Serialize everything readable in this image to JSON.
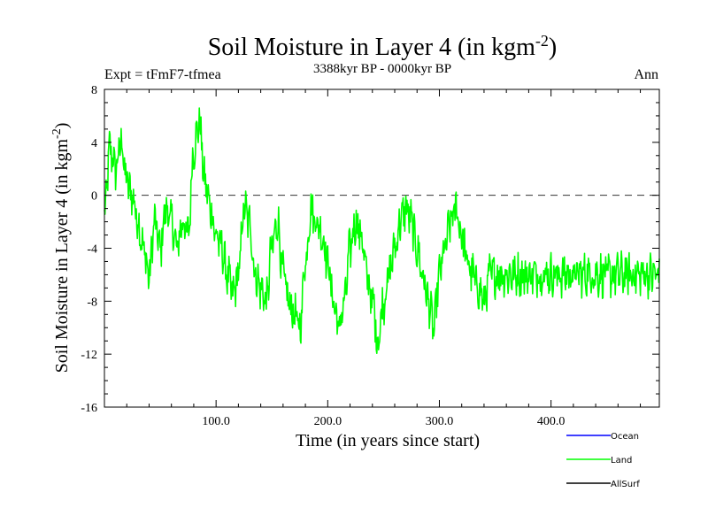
{
  "chart_data": {
    "type": "line",
    "title": {
      "text": "Soil Moisture in Layer 4 (in kgm",
      "sup": "-2",
      "close": ")"
    },
    "subtitle_left": "Expt = tFmF7-tfmea",
    "subtitle_center": "3388kyr BP - 0000kyr BP",
    "subtitle_right": "Ann",
    "xlabel": "Time (in years since start)",
    "ylabel": {
      "text": "Soil Moisture in Layer 4 (in kgm",
      "sup": "-2",
      "close": ")"
    },
    "xlim": [
      0,
      497
    ],
    "ylim": [
      -16,
      8
    ],
    "x_ticks": [
      100,
      200,
      300,
      400
    ],
    "x_tick_labels": [
      "100.0",
      "200.0",
      "300.0",
      "400.0"
    ],
    "y_ticks": [
      8,
      4,
      0,
      -4,
      -8,
      -12,
      -16
    ],
    "y_tick_labels": [
      "8",
      "4",
      "0",
      "-4",
      "-8",
      "-12",
      "-16"
    ],
    "zero_line": 0,
    "legend": {
      "position": "bottom-right",
      "entries": [
        {
          "name": "Ocean",
          "color": "#0000ff"
        },
        {
          "name": "Land",
          "color": "#00ff00"
        },
        {
          "name": "AllSurf",
          "color": "#000000"
        }
      ]
    },
    "series": [
      {
        "name": "Land",
        "color": "#00ff00",
        "x_start": 0,
        "x_step": 5,
        "values": [
          -1.5,
          3.5,
          2,
          4,
          1,
          0,
          -2,
          -4,
          -6,
          -2,
          -4,
          -1,
          -2,
          -4,
          -2,
          -3,
          3.5,
          5.5,
          1,
          -1,
          -3,
          -4,
          -6,
          -7.5,
          -6,
          -1,
          -2,
          -6,
          -7,
          -8,
          -4,
          -2,
          -6,
          -8,
          -9,
          -10,
          -5,
          -1,
          -2,
          -3,
          -5,
          -8,
          -10,
          -8,
          -4,
          -2,
          -3,
          -6,
          -8,
          -11,
          -8,
          -6,
          -4,
          -2,
          -1,
          -2,
          -4,
          -6,
          -8,
          -10,
          -6,
          -4,
          -2,
          -1,
          -3,
          -5,
          -6,
          -7,
          -8,
          -6
        ]
      }
    ]
  }
}
